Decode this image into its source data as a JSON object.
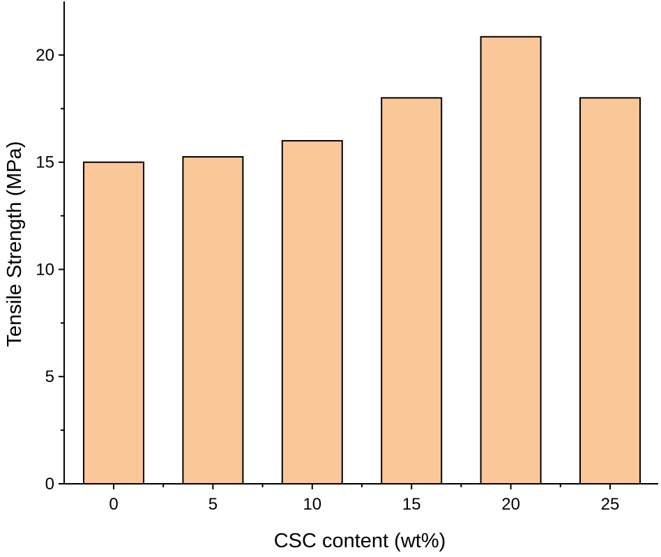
{
  "chart_data": {
    "type": "bar",
    "categories": [
      "0",
      "5",
      "10",
      "15",
      "20",
      "25"
    ],
    "values": [
      15.0,
      15.25,
      16.0,
      18.0,
      20.85,
      18.0
    ],
    "title": "",
    "xlabel": "CSC content (wt%)",
    "ylabel": "Tensile Strength (MPa)",
    "ylim": [
      0,
      22.5
    ],
    "yticks": [
      "0",
      "5",
      "10",
      "15",
      "20"
    ],
    "grid": false,
    "bar_color": "#fac898",
    "edge_color": "#000000"
  }
}
